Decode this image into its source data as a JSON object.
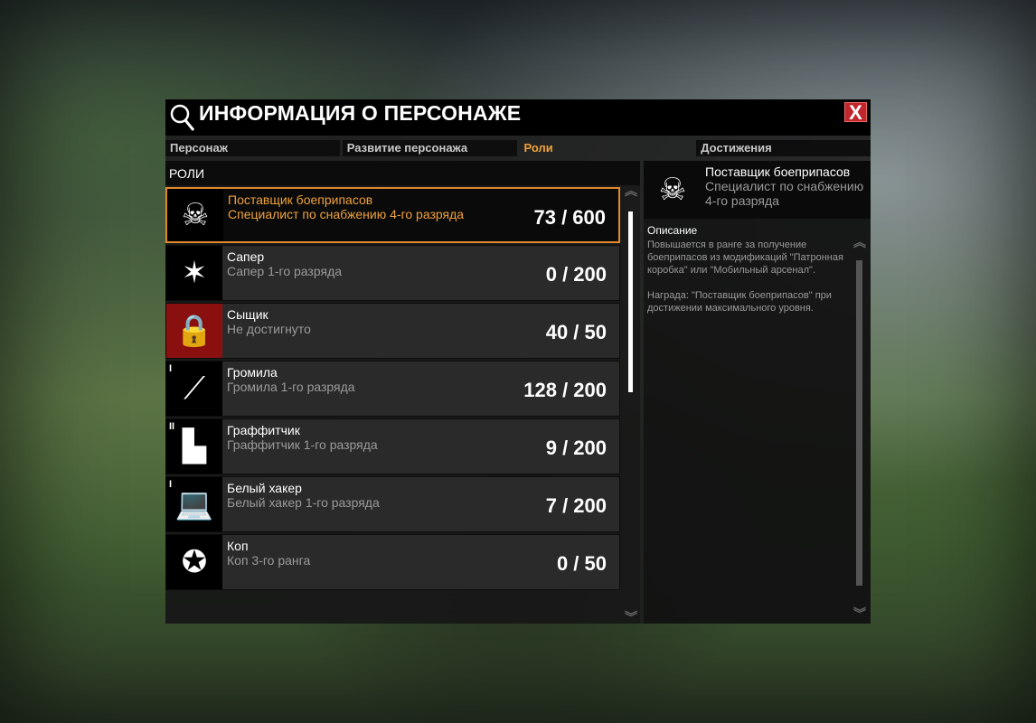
{
  "window": {
    "title": "ИНФОРМАЦИЯ О ПЕРСОНАЖЕ",
    "close_label": "X"
  },
  "tabs": [
    {
      "label": "Персонаж"
    },
    {
      "label": "Развитие персонажа"
    },
    {
      "label": "Роли",
      "active": true
    },
    {
      "label": "Достижения"
    }
  ],
  "roles_header": "РОЛИ",
  "roles": [
    {
      "name": "Поставщик боеприпасов",
      "subtitle": "Специалист по снабжению 4-го разряда",
      "progress": "73 / 600",
      "icon": "skull-crossed-bullets-icon",
      "rank": "",
      "selected": true
    },
    {
      "name": "Сапер",
      "subtitle": "Сапер 1-го разряда",
      "progress": "0 / 200",
      "icon": "detonator-icon",
      "rank": ""
    },
    {
      "name": "Сыщик",
      "subtitle": "Не достигнуто",
      "progress": "40 / 50",
      "icon": "lock-icon",
      "rank": "",
      "locked": true
    },
    {
      "name": "Громила",
      "subtitle": "Громила 1-го разряда",
      "progress": "128 / 200",
      "icon": "bazooka-icon",
      "rank": "I"
    },
    {
      "name": "Граффитчик",
      "subtitle": "Граффитчик 1-го разряда",
      "progress": "9 / 200",
      "icon": "spray-gun-icon",
      "rank": "II"
    },
    {
      "name": "Белый хакер",
      "subtitle": "Белый хакер 1-го разряда",
      "progress": "7 / 200",
      "icon": "laptop-icon",
      "rank": "I"
    },
    {
      "name": "Коп",
      "subtitle": "Коп 3-го ранга",
      "progress": "0 / 50",
      "icon": "police-badge-icon",
      "rank": ""
    }
  ],
  "detail": {
    "name": "Поставщик боеприпасов",
    "subtitle": "Специалист по снабжению 4-го разряда",
    "description_label": "Описание",
    "description": "Повышается в ранге за получение боеприпасов из модификаций \"Патронная коробка\" или \"Мобильный арсенал\".\n\nНаграда: \"Поставщик боеприпасов\" при достижении максимального уровня."
  },
  "colors": {
    "accent": "#f0a23a",
    "close": "#c0272d",
    "locked": "#8a1010"
  }
}
